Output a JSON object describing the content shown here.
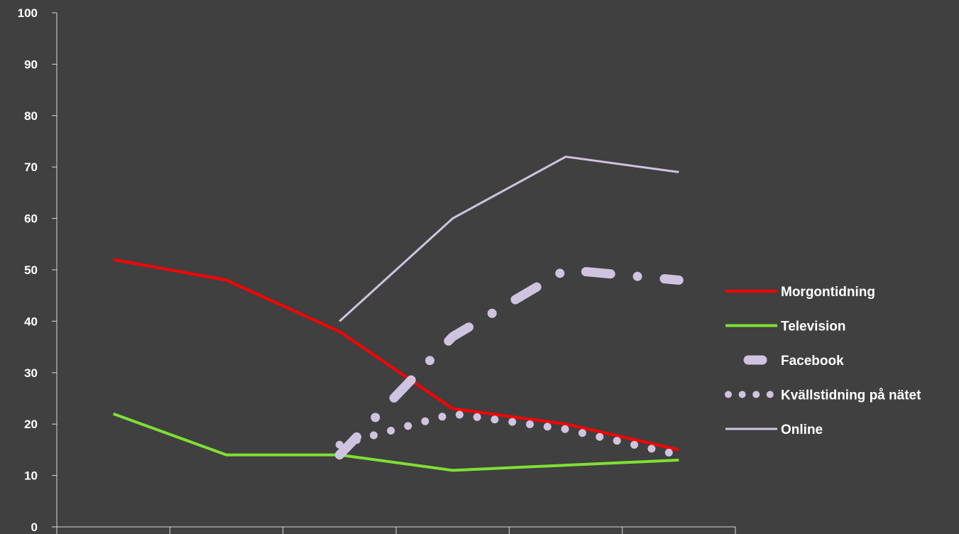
{
  "chart_data": {
    "type": "line",
    "x": [
      1,
      2,
      3,
      4,
      5,
      6
    ],
    "xlim": [
      0.5,
      6.5
    ],
    "ylim": [
      0,
      100
    ],
    "yticks": [
      "0",
      "10",
      "20",
      "30",
      "40",
      "50",
      "60",
      "70",
      "80",
      "90",
      "100"
    ],
    "legend_position": "right",
    "grid": false,
    "series": [
      {
        "name": "Morgontidning",
        "style": "solid",
        "color": "#ff0000",
        "values": [
          52,
          48,
          38,
          23,
          20,
          15
        ]
      },
      {
        "name": "Television",
        "style": "solid",
        "color": "#7fe033",
        "values": [
          22,
          14,
          14,
          11,
          12,
          13
        ]
      },
      {
        "name": "Facebook",
        "style": "dash-dot",
        "color": "#cfc4e0",
        "values": [
          null,
          null,
          14,
          37,
          50,
          48
        ]
      },
      {
        "name": "Kvällstidning på nätet",
        "style": "dotted",
        "color": "#cfc4e0",
        "values": [
          null,
          null,
          16,
          22,
          19,
          14
        ]
      },
      {
        "name": "Online",
        "style": "thin",
        "color": "#cfc4e0",
        "values": [
          null,
          null,
          40,
          60,
          72,
          69
        ]
      }
    ]
  }
}
